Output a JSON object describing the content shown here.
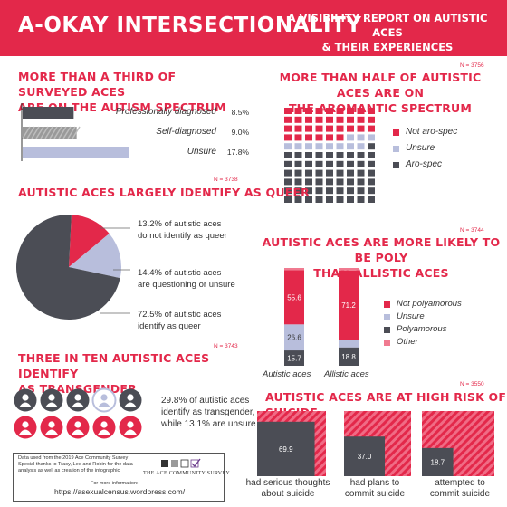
{
  "header": {
    "title": "A-OKAY INTERSECTIONALITY",
    "subtitle_line1": "A VISIBILITY REPORT ON AUTISTIC ACES",
    "subtitle_line2": "& THEIR EXPERIENCES"
  },
  "colors": {
    "accent": "#e3284a",
    "dark": "#4b4d55",
    "light_blue": "#b8bedc",
    "pink_light": "#f07a90",
    "gray": "#9a9a9a"
  },
  "spectrum": {
    "title_line1": "MORE THAN A THIRD OF SURVEYED ACES",
    "title_line2": "ARE ON THE AUTISM SPECTRUM",
    "rows": [
      {
        "label": "Professionally diagnosed",
        "value": "8.5%"
      },
      {
        "label": "Self-diagnosed",
        "value": "9.0%"
      },
      {
        "label": "Unsure",
        "value": "17.8%"
      }
    ]
  },
  "aro": {
    "n": "N = 3756",
    "title_line1": "MORE THAN HALF OF AUTISTIC ACES ARE ON",
    "title_line2": "THE AROMANTIC SPECTRUM",
    "legend": [
      "Not aro-spec",
      "Unsure",
      "Aro-spec"
    ]
  },
  "queer": {
    "n": "N = 3738",
    "title": "AUTISTIC ACES LARGELY IDENTIFY AS QUEER",
    "label1_line1": "13.2% of autistic aces",
    "label1_line2": "do not identify as queer",
    "label2_line1": "14.4% of autistic aces",
    "label2_line2": "are questioning or unsure",
    "label3_line1": "72.5% of autistic aces",
    "label3_line2": "identify as queer"
  },
  "poly": {
    "n": "N = 3744",
    "title_line1": "AUTISTIC ACES ARE MORE LIKELY TO BE POLY",
    "title_line2": "THAN ALLISTIC ACES",
    "legend": [
      "Not polyamorous",
      "Unsure",
      "Polyamorous",
      "Other"
    ],
    "value_labels": {
      "a_not": "55.6",
      "a_unsure": "26.6",
      "a_poly": "15.7",
      "b_not": "71.2",
      "b_poly": "18.8"
    },
    "cat_labels": [
      "Autistic aces",
      "Allistic aces"
    ]
  },
  "trans": {
    "n": "N = 3743",
    "title_line1": "THREE IN TEN AUTISTIC ACES IDENTIFY",
    "title_line2": "AS TRANSGENDER",
    "text_line1": "29.8% of autistic aces",
    "text_line2": "identify as transgender,",
    "text_line3": "while  13.1% are unsure"
  },
  "suicide": {
    "n": "N = 3550",
    "title": "AUTISTIC ACES ARE AT HIGH RISK OF SUICIDE",
    "value_labels": [
      "69.9",
      "37.0",
      "18.7"
    ],
    "captions": [
      {
        "line1": "had serious thoughts",
        "line2": "about suicide"
      },
      {
        "line1": "had plans to",
        "line2": "commit suicide"
      },
      {
        "line1": "attempted to",
        "line2": "commit suicide"
      }
    ]
  },
  "footer": {
    "line1": "Data used from the  2019 Ace Community Survey",
    "line2": "Special thanks to Tracy, Lee and Robin for the data",
    "line3": "analysis as well as creation of the infographic",
    "brand": "THE ACE COMMUNITY SURVEY",
    "more_info": "For more information:",
    "url": "https://asexualcensus.wordpress.com/"
  },
  "chart_data": [
    {
      "type": "bar",
      "title": "MORE THAN A THIRD OF SURVEYED ACES ARE ON THE AUTISM SPECTRUM",
      "orientation": "horizontal",
      "categories": [
        "Professionally diagnosed",
        "Self-diagnosed",
        "Unsure"
      ],
      "values": [
        8.5,
        9.0,
        17.8
      ]
    },
    {
      "type": "waffle",
      "title": "MORE THAN HALF OF AUTISTIC ACES ARE ON THE AROMANTIC SPECTRUM",
      "grid": [
        11,
        9
      ],
      "categories": [
        "Not aro-spec",
        "Unsure",
        "Aro-spec"
      ],
      "counts": [
        33,
        11,
        55
      ]
    },
    {
      "type": "pie",
      "title": "AUTISTIC ACES LARGELY IDENTIFY AS QUEER",
      "categories": [
        "do not identify as queer",
        "are questioning or unsure",
        "identify as queer"
      ],
      "values": [
        13.2,
        14.4,
        72.5
      ]
    },
    {
      "type": "bar",
      "stacked": true,
      "title": "AUTISTIC ACES ARE MORE LIKELY TO BE POLY THAN ALLISTIC ACES",
      "categories": [
        "Autistic aces",
        "Allistic aces"
      ],
      "series": [
        {
          "name": "Polyamorous",
          "values": [
            15.7,
            18.8
          ]
        },
        {
          "name": "Unsure",
          "values": [
            26.6,
            7.5
          ]
        },
        {
          "name": "Not polyamorous",
          "values": [
            55.6,
            71.2
          ]
        },
        {
          "name": "Other",
          "values": [
            2.1,
            2.5
          ]
        }
      ],
      "ylim": [
        0,
        100
      ]
    },
    {
      "type": "icon_array",
      "title": "THREE IN TEN AUTISTIC ACES IDENTIFY AS TRANSGENDER",
      "categories": [
        "identify as transgender",
        "unsure"
      ],
      "values": [
        29.8,
        13.1
      ]
    },
    {
      "type": "bar",
      "title": "AUTISTIC ACES ARE AT HIGH RISK OF SUICIDE",
      "categories": [
        "had serious thoughts about suicide",
        "had plans to commit suicide",
        "attempted to commit suicide"
      ],
      "values": [
        69.9,
        37.0,
        18.7
      ],
      "ylim": [
        0,
        100
      ]
    }
  ]
}
